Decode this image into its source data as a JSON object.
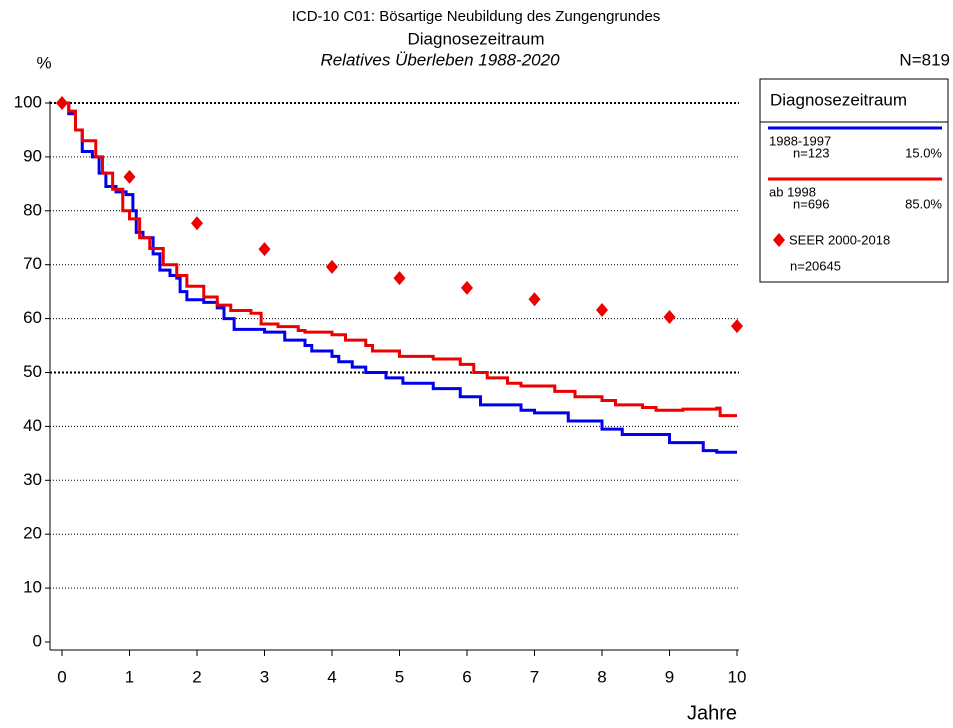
{
  "chart_data": {
    "type": "line",
    "title": "ICD-10 C01: Bösartige Neubildung des Zungengrundes",
    "subtitle": "Diagnosezeitraum",
    "subtitle2": "Relatives Überleben 1988-2020",
    "n_total": "N=819",
    "ylabel": "%",
    "xlabel": "Jahre",
    "legend_title": "Diagnosezeitraum",
    "xlim": [
      0,
      10
    ],
    "xticks": [
      0,
      1,
      2,
      3,
      4,
      5,
      6,
      7,
      8,
      9,
      10
    ],
    "ylim": [
      0,
      100
    ],
    "yticks": [
      0,
      10,
      20,
      30,
      40,
      50,
      60,
      70,
      80,
      90,
      100
    ],
    "grid": true,
    "series": [
      {
        "name": "1988-1997",
        "n_label": "n=123",
        "share_label": "15.0%",
        "color": "#0000ee",
        "style": "step",
        "x": [
          0,
          0.1,
          0.2,
          0.3,
          0.45,
          0.55,
          0.65,
          0.8,
          0.95,
          1.05,
          1.1,
          1.2,
          1.35,
          1.45,
          1.6,
          1.7,
          1.75,
          1.85,
          2.1,
          2.3,
          2.4,
          2.55,
          3.0,
          3.3,
          3.6,
          3.7,
          4.0,
          4.1,
          4.3,
          4.5,
          4.8,
          5.05,
          5.5,
          5.9,
          6.2,
          6.8,
          7.0,
          7.5,
          8.0,
          8.3,
          9.0,
          9.5,
          9.7,
          10
        ],
        "values": [
          100,
          98,
          95,
          91,
          90,
          87,
          84.5,
          83.5,
          83,
          80,
          76,
          75,
          72,
          69,
          68,
          67.5,
          65,
          63.5,
          63,
          62,
          60,
          58,
          57.5,
          56,
          55,
          54,
          53,
          52,
          51,
          50,
          49,
          48,
          47,
          45.5,
          44,
          43,
          42.5,
          41,
          39.5,
          38.5,
          37,
          35.5,
          35.2,
          35.2
        ]
      },
      {
        "name": "ab 1998",
        "n_label": "n=696",
        "share_label": "85.0%",
        "color": "#ee0000",
        "style": "step",
        "x": [
          0,
          0.1,
          0.2,
          0.3,
          0.5,
          0.6,
          0.75,
          0.9,
          1.0,
          1.15,
          1.3,
          1.5,
          1.7,
          1.85,
          2.1,
          2.3,
          2.5,
          2.8,
          2.95,
          3.2,
          3.5,
          3.6,
          4.0,
          4.2,
          4.5,
          4.6,
          5.0,
          5.5,
          5.9,
          6.1,
          6.3,
          6.6,
          6.8,
          7.3,
          7.6,
          8.0,
          8.2,
          8.6,
          8.8,
          9.2,
          9.7,
          9.75,
          10
        ],
        "values": [
          100,
          98.5,
          95,
          93,
          90,
          87,
          84,
          80,
          78.5,
          75,
          73,
          70,
          68,
          66,
          64,
          62.5,
          61.5,
          61,
          59,
          58.5,
          57.8,
          57.5,
          57,
          56,
          55,
          54,
          53,
          52.5,
          51.5,
          50,
          49,
          48,
          47.5,
          46.5,
          45.5,
          44.8,
          44,
          43.5,
          43,
          43.2,
          43.4,
          42,
          42
        ]
      },
      {
        "name": "SEER 2000-2018",
        "n_label": "n=20645",
        "color": "#ee0000",
        "style": "diamond",
        "x": [
          0,
          1,
          2,
          3,
          4,
          5,
          6,
          7,
          8,
          9,
          10
        ],
        "values": [
          100,
          86.3,
          77.7,
          72.9,
          69.6,
          67.5,
          65.7,
          63.6,
          61.6,
          60.3,
          58.6
        ]
      }
    ]
  }
}
